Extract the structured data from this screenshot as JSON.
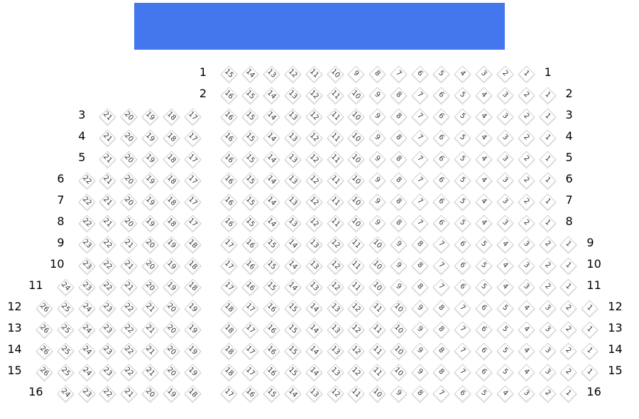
{
  "stage": {
    "color": "#4477ee"
  },
  "rows": [
    {
      "label": "1",
      "left": null,
      "right": [
        15,
        1
      ]
    },
    {
      "label": "2",
      "left": null,
      "right": [
        16,
        1
      ]
    },
    {
      "label": "3",
      "left": [
        21,
        17
      ],
      "right": [
        16,
        1
      ]
    },
    {
      "label": "4",
      "left": [
        21,
        17
      ],
      "right": [
        16,
        1
      ]
    },
    {
      "label": "5",
      "left": [
        21,
        17
      ],
      "right": [
        16,
        1
      ]
    },
    {
      "label": "6",
      "left": [
        22,
        17
      ],
      "right": [
        16,
        1
      ]
    },
    {
      "label": "7",
      "left": [
        22,
        17
      ],
      "right": [
        16,
        1
      ]
    },
    {
      "label": "8",
      "left": [
        22,
        17
      ],
      "right": [
        16,
        1
      ]
    },
    {
      "label": "9",
      "left": [
        23,
        18
      ],
      "right": [
        17,
        1
      ]
    },
    {
      "label": "10",
      "left": [
        23,
        18
      ],
      "right": [
        17,
        1
      ]
    },
    {
      "label": "11",
      "left": [
        24,
        18
      ],
      "right": [
        17,
        1
      ]
    },
    {
      "label": "12",
      "left": [
        26,
        19
      ],
      "right": [
        18,
        1
      ]
    },
    {
      "label": "13",
      "left": [
        26,
        19
      ],
      "right": [
        18,
        1
      ]
    },
    {
      "label": "14",
      "left": [
        26,
        19
      ],
      "right": [
        18,
        1
      ]
    },
    {
      "label": "15",
      "left": [
        26,
        19
      ],
      "right": [
        18,
        1
      ]
    },
    {
      "label": "16",
      "left": [
        24,
        18
      ],
      "right": [
        17,
        1
      ]
    }
  ]
}
